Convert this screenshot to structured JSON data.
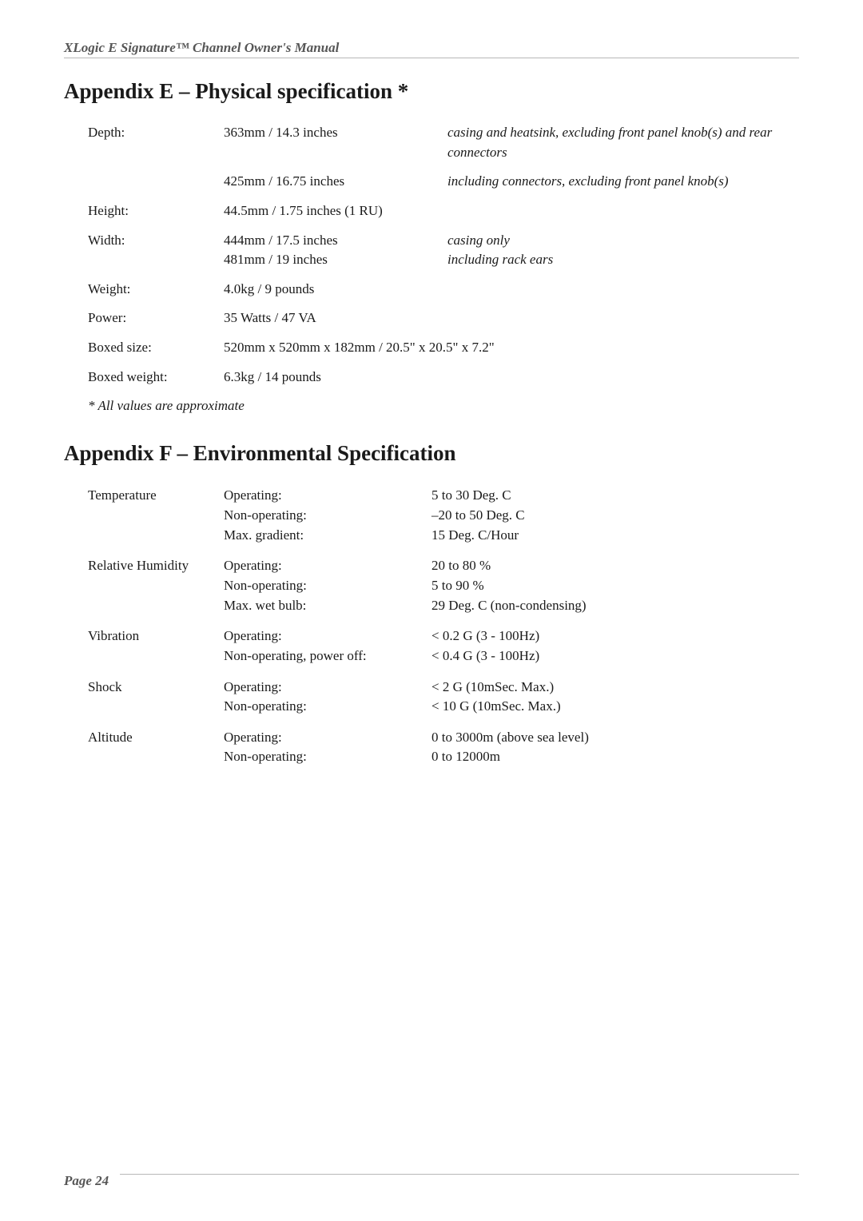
{
  "header": {
    "title": "XLogic E Signature™ Channel Owner's Manual"
  },
  "appendixE": {
    "heading": "Appendix E – Physical specification *",
    "rows": [
      {
        "label": "Depth:",
        "value": "363mm / 14.3 inches",
        "note": "casing and heatsink, excluding front panel knob(s) and rear connectors"
      },
      {
        "label": "",
        "value": "425mm / 16.75 inches",
        "note": "including connectors, excluding front panel knob(s)"
      },
      {
        "label": "Height:",
        "value": "44.5mm / 1.75 inches (1 RU)",
        "note": ""
      },
      {
        "label": "Width:",
        "value": "444mm / 17.5 inches\n481mm / 19 inches",
        "note": "casing only\nincluding rack ears"
      },
      {
        "label": "Weight:",
        "value": "4.0kg / 9 pounds",
        "note": ""
      },
      {
        "label": "Power:",
        "value": "35 Watts / 47 VA",
        "note": ""
      },
      {
        "label": "Boxed size:",
        "value": "520mm x 520mm x 182mm / 20.5\" x 20.5\" x 7.2\"",
        "note": ""
      },
      {
        "label": "Boxed weight:",
        "value": "6.3kg / 14 pounds",
        "note": ""
      }
    ],
    "footnote": "* All values are approximate"
  },
  "appendixF": {
    "heading": "Appendix F – Environmental Specification",
    "rows": [
      {
        "label": "Temperature",
        "params": "Operating:\nNon-operating:\nMax. gradient:",
        "values": "5 to 30 Deg. C\n–20 to 50 Deg. C\n15 Deg. C/Hour"
      },
      {
        "label": "Relative Humidity",
        "params": "Operating:\nNon-operating:\nMax. wet bulb:",
        "values": "20 to 80 %\n5 to 90 %\n29 Deg. C (non-condensing)"
      },
      {
        "label": "Vibration",
        "params": "Operating:\nNon-operating, power off:",
        "values": "< 0.2 G (3 - 100Hz)\n< 0.4 G (3 - 100Hz)"
      },
      {
        "label": "Shock",
        "params": "Operating:\nNon-operating:",
        "values": "< 2 G (10mSec. Max.)\n< 10 G (10mSec. Max.)"
      },
      {
        "label": "Altitude",
        "params": "Operating:\nNon-operating:",
        "values": "0 to 3000m (above sea level)\n0 to 12000m"
      }
    ]
  },
  "footer": {
    "pageNumber": "Page 24"
  }
}
